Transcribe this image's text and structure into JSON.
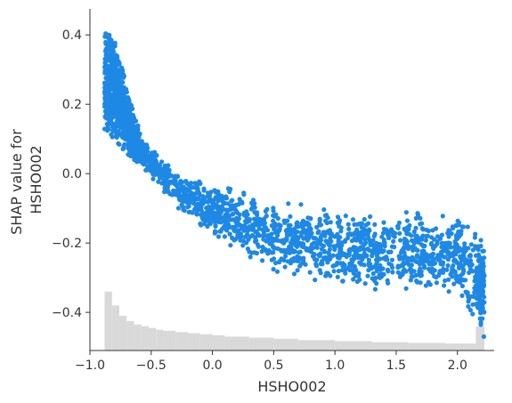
{
  "chart_data": {
    "type": "scatter",
    "xlabel": "HSHO002",
    "ylabel_lines": [
      "SHAP value for",
      "HSHO002"
    ],
    "xlim": [
      -1.0,
      2.3
    ],
    "ylim": [
      -0.51,
      0.475
    ],
    "xticks": [
      -1.0,
      -0.5,
      0.0,
      0.5,
      1.0,
      1.5,
      2.0
    ],
    "xtick_labels": [
      "−1.0",
      "−0.5",
      "0.0",
      "0.5",
      "1.0",
      "1.5",
      "2.0"
    ],
    "yticks": [
      -0.4,
      -0.2,
      0.0,
      0.2,
      0.4
    ],
    "ytick_labels": [
      "−0.4",
      "−0.2",
      "0.0",
      "0.2",
      "0.4"
    ],
    "grid": false,
    "point_color": "#1E88E5",
    "histogram_color": "#d9d9d9",
    "trend": {
      "x": [
        -0.88,
        -0.8,
        -0.7,
        -0.6,
        -0.5,
        -0.3,
        0.0,
        0.3,
        0.5,
        1.0,
        1.5,
        2.0,
        2.2
      ],
      "upper": [
        0.43,
        0.41,
        0.25,
        0.13,
        0.07,
        0.01,
        -0.03,
        -0.06,
        -0.08,
        -0.1,
        -0.11,
        -0.12,
        -0.18
      ],
      "lower": [
        0.1,
        0.09,
        0.06,
        0.02,
        -0.02,
        -0.1,
        -0.18,
        -0.24,
        -0.28,
        -0.32,
        -0.34,
        -0.34,
        -0.47
      ]
    },
    "histogram": {
      "bin_edges": [
        -0.88,
        -0.82,
        -0.76,
        -0.7,
        -0.64,
        -0.58,
        -0.52,
        -0.46,
        -0.4,
        -0.3,
        -0.2,
        -0.1,
        0.0,
        0.1,
        0.3,
        0.5,
        0.7,
        1.0,
        1.3,
        1.6,
        1.9,
        2.15,
        2.22
      ],
      "heights": [
        -0.34,
        -0.38,
        -0.41,
        -0.425,
        -0.435,
        -0.44,
        -0.445,
        -0.45,
        -0.453,
        -0.457,
        -0.46,
        -0.463,
        -0.466,
        -0.47,
        -0.473,
        -0.476,
        -0.48,
        -0.483,
        -0.486,
        -0.488,
        -0.49,
        -0.44
      ]
    }
  }
}
